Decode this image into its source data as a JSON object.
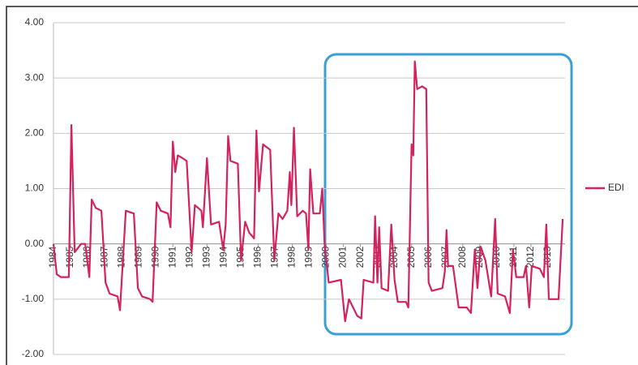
{
  "chart_data": {
    "type": "line",
    "x": [
      1984.0,
      1984.19,
      1984.43,
      1984.9,
      1985.05,
      1985.24,
      1985.62,
      1985.86,
      1986.1,
      1986.24,
      1986.48,
      1986.81,
      1987.05,
      1987.29,
      1987.76,
      1987.9,
      1988.24,
      1988.71,
      1988.95,
      1989.19,
      1989.67,
      1989.81,
      1990.05,
      1990.29,
      1990.71,
      1990.86,
      1991.0,
      1991.14,
      1991.29,
      1991.57,
      1991.81,
      1992.1,
      1992.29,
      1992.67,
      1992.76,
      1993.0,
      1993.24,
      1993.71,
      1993.95,
      1994.1,
      1994.24,
      1994.38,
      1994.81,
      1995.0,
      1995.24,
      1995.48,
      1995.76,
      1995.9,
      1996.05,
      1996.29,
      1996.71,
      1996.95,
      1997.19,
      1997.43,
      1997.71,
      1997.86,
      1997.95,
      1998.1,
      1998.29,
      1998.62,
      1998.81,
      1998.95,
      1999.05,
      1999.24,
      1999.62,
      1999.76,
      1999.9,
      2000.14,
      2000.86,
      2001.1,
      2001.33,
      2001.81,
      2002.05,
      2002.19,
      2002.76,
      2002.86,
      2003.0,
      2003.1,
      2003.24,
      2003.62,
      2003.81,
      2004.0,
      2004.19,
      2004.67,
      2004.81,
      2005.0,
      2005.1,
      2005.19,
      2005.33,
      2005.62,
      2005.86,
      2006.0,
      2006.19,
      2006.81,
      2006.95,
      2007.05,
      2007.14,
      2007.43,
      2007.76,
      2008.24,
      2008.48,
      2008.71,
      2008.86,
      2009.05,
      2009.33,
      2009.67,
      2009.9,
      2010.05,
      2010.48,
      2010.76,
      2010.95,
      2011.14,
      2011.57,
      2011.71,
      2011.9,
      2012.05,
      2012.52,
      2012.76,
      2012.9,
      2013.05,
      2013.62,
      2013.86
    ],
    "series": [
      {
        "name": "EDI",
        "color": "#d4215f",
        "values": [
          0,
          -0.55,
          -0.6,
          -0.6,
          2.15,
          -0.15,
          0.0,
          0.0,
          -0.6,
          0.8,
          0.65,
          0.6,
          -0.7,
          -0.9,
          -0.95,
          -1.2,
          0.6,
          0.55,
          -0.8,
          -0.95,
          -1.0,
          -1.05,
          0.75,
          0.6,
          0.55,
          0.3,
          1.85,
          1.3,
          1.6,
          1.55,
          1.5,
          -0.15,
          0.7,
          0.6,
          0.3,
          1.55,
          0.35,
          0.4,
          -0.1,
          0.35,
          1.95,
          1.5,
          1.45,
          -0.3,
          0.4,
          0.2,
          0.1,
          2.05,
          0.95,
          1.8,
          1.7,
          -0.3,
          0.55,
          0.45,
          0.6,
          1.3,
          0.7,
          2.1,
          0.5,
          0.6,
          0.55,
          -0.1,
          1.35,
          0.55,
          0.55,
          1.0,
          0.0,
          -0.7,
          -0.65,
          -1.4,
          -1.0,
          -1.3,
          -1.35,
          -0.65,
          -0.7,
          0.5,
          -0.7,
          0.3,
          -0.8,
          -0.85,
          0.35,
          -0.65,
          -1.05,
          -1.05,
          -1.15,
          1.8,
          1.6,
          3.3,
          2.8,
          2.85,
          2.8,
          -0.7,
          -0.85,
          -0.8,
          -0.5,
          0.25,
          -0.4,
          -0.4,
          -1.15,
          -1.15,
          -1.25,
          -0.1,
          -0.8,
          -0.05,
          -0.3,
          -0.95,
          0.45,
          -0.9,
          -0.95,
          -1.25,
          -0.1,
          -0.6,
          -0.6,
          -0.4,
          -1.15,
          -0.4,
          -0.45,
          -0.6,
          0.35,
          -1.0,
          -1.0,
          0.45
        ]
      }
    ],
    "xlim": [
      1984,
      2014
    ],
    "xticks": [
      1984,
      1985,
      1986,
      1987,
      1988,
      1989,
      1990,
      1991,
      1992,
      1993,
      1994,
      1995,
      1996,
      1997,
      1998,
      1999,
      2000,
      2001,
      2002,
      2003,
      2004,
      2005,
      2006,
      2007,
      2008,
      2009,
      2010,
      2011,
      2012,
      2013
    ],
    "ylim": [
      -2,
      4
    ],
    "yticks": [
      {
        "value": -2,
        "label": "-2.00"
      },
      {
        "value": -1,
        "label": "-1.00"
      },
      {
        "value": 0,
        "label": "0.00"
      },
      {
        "value": 1,
        "label": "1.00"
      },
      {
        "value": 2,
        "label": "2.00"
      },
      {
        "value": 3,
        "label": "3.00"
      },
      {
        "value": 4,
        "label": "4.00"
      }
    ],
    "grid": true,
    "legend": "right"
  }
}
